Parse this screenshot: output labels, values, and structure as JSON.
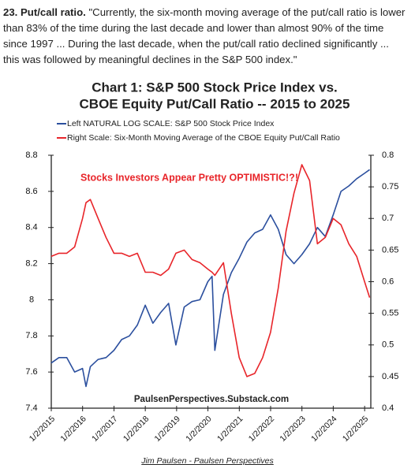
{
  "article": {
    "heading": "23. Put/call ratio.",
    "text": "\"Currently, the six-month moving average of the put/call ratio is lower than 83% of the time during the last decade and lower than almost 90% of the time since 1997 ... During the last decade, when the put/call ratio declined significantly ... this was followed by meaningful declines in the S&P 500 index.\""
  },
  "chart_data": {
    "type": "line",
    "title": [
      "Chart 1: S&P 500 Stock Price Index vs.",
      "CBOE Equity Put/Call Ratio -- 2015 to 2025"
    ],
    "annotations": [
      "Stocks Investors Appear Pretty OPTIMISTIC!?!",
      "PaulsenPerspectives.Substack.com"
    ],
    "x": [
      "2015-01-01",
      "2015-04-01",
      "2015-07-01",
      "2015-10-01",
      "2016-01-01",
      "2016-02-11",
      "2016-04-01",
      "2016-07-01",
      "2016-10-01",
      "2017-01-01",
      "2017-04-01",
      "2017-07-01",
      "2017-10-01",
      "2018-01-01",
      "2018-04-01",
      "2018-07-01",
      "2018-10-01",
      "2018-12-24",
      "2019-04-01",
      "2019-07-01",
      "2019-10-01",
      "2020-01-01",
      "2020-02-19",
      "2020-03-23",
      "2020-07-01",
      "2020-10-01",
      "2021-01-01",
      "2021-04-01",
      "2021-07-01",
      "2021-10-01",
      "2022-01-01",
      "2022-04-01",
      "2022-07-01",
      "2022-10-01",
      "2023-01-01",
      "2023-04-01",
      "2023-07-01",
      "2023-10-01",
      "2024-01-01",
      "2024-04-01",
      "2024-07-01",
      "2024-10-01",
      "2025-01-01",
      "2025-03-01"
    ],
    "series": [
      {
        "name": "Left NATURAL LOG SCALE: S&P 500 Stock Price Index",
        "color": "#2b4f9e",
        "values": [
          7.65,
          7.68,
          7.68,
          7.6,
          7.62,
          7.52,
          7.63,
          7.67,
          7.68,
          7.72,
          7.78,
          7.8,
          7.86,
          7.97,
          7.87,
          7.93,
          7.98,
          7.75,
          7.96,
          7.99,
          8.0,
          8.1,
          8.13,
          7.72,
          8.03,
          8.15,
          8.23,
          8.32,
          8.37,
          8.39,
          8.47,
          8.39,
          8.25,
          8.2,
          8.25,
          8.31,
          8.4,
          8.35,
          8.47,
          8.6,
          8.63,
          8.67,
          8.7,
          8.72
        ]
      },
      {
        "name": "Right Scale: Six-Month Moving Average of the CBOE Equity Put/Call Ratio",
        "color": "#e8252a",
        "axis": "y2",
        "values": [
          0.64,
          0.645,
          0.645,
          0.655,
          0.7,
          0.725,
          0.73,
          0.7,
          0.67,
          0.645,
          0.645,
          0.64,
          0.645,
          0.615,
          0.615,
          0.61,
          0.62,
          0.645,
          0.65,
          0.635,
          0.63,
          0.62,
          0.615,
          0.61,
          0.63,
          0.55,
          0.48,
          0.45,
          0.455,
          0.48,
          0.52,
          0.59,
          0.68,
          0.74,
          0.785,
          0.76,
          0.66,
          0.67,
          0.7,
          0.69,
          0.66,
          0.64,
          0.6,
          0.575
        ]
      }
    ],
    "xlim": [
      "2015-01-02",
      "2025-03-15"
    ],
    "xticks": [
      {
        "value": "2015-01-02",
        "label": "1/2/2015"
      },
      {
        "value": "2016-01-02",
        "label": "1/2/2016"
      },
      {
        "value": "2017-01-02",
        "label": "1/2/2017"
      },
      {
        "value": "2018-01-02",
        "label": "1/2/2018"
      },
      {
        "value": "2019-01-02",
        "label": "1/2/2019"
      },
      {
        "value": "2020-01-02",
        "label": "1/2/2020"
      },
      {
        "value": "2021-01-02",
        "label": "1/2/2021"
      },
      {
        "value": "2022-01-02",
        "label": "1/2/2022"
      },
      {
        "value": "2023-01-02",
        "label": "1/2/2023"
      },
      {
        "value": "2024-01-02",
        "label": "1/2/2024"
      },
      {
        "value": "2025-01-02",
        "label": "1/2/2025"
      }
    ],
    "ylim": [
      7.4,
      8.8
    ],
    "yticks": [
      7.4,
      7.6,
      7.8,
      8,
      8.2,
      8.4,
      8.6,
      8.8
    ],
    "y2lim": [
      0.4,
      0.8
    ],
    "y2ticks": [
      0.4,
      0.45,
      0.5,
      0.55,
      0.6,
      0.65,
      0.7,
      0.75,
      0.8
    ],
    "grid": false
  },
  "caption": "Jim Paulsen - Paulsen Perspectives"
}
